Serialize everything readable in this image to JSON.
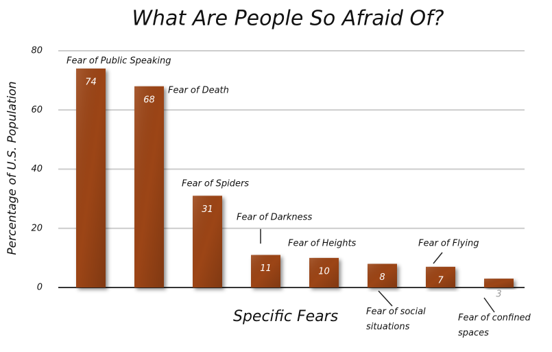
{
  "chart_data": {
    "type": "bar",
    "title": "What Are People So Afraid Of?",
    "y_label": "Percentage of U.S. Population",
    "x_label": "Specific Fears",
    "categories": [
      "Fear of Public Speaking",
      "Fear of Death",
      "Fear of Spiders",
      "Fear of Darkness",
      "Fear of Heights",
      "Fear of social situations",
      "Fear of Flying",
      "Fear of confined spaces"
    ],
    "values": [
      74,
      68,
      31,
      11,
      10,
      8,
      7,
      3
    ],
    "color": "#9c4418",
    "ylim": [
      0,
      80
    ],
    "yticks": [
      0,
      20,
      40,
      60,
      80
    ],
    "grid": true
  }
}
